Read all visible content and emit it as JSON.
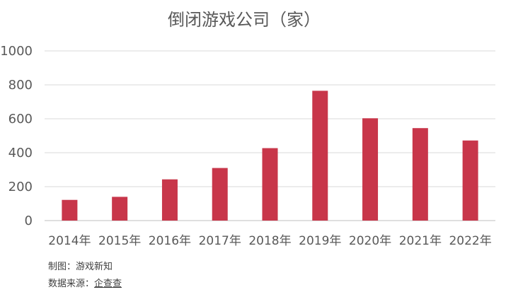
{
  "chart_data": {
    "type": "bar",
    "title": "倒闭游戏公司（家）",
    "categories": [
      "2014年",
      "2015年",
      "2016年",
      "2017年",
      "2018年",
      "2019年",
      "2020年",
      "2021年",
      "2022年"
    ],
    "values": [
      122,
      140,
      243,
      310,
      427,
      765,
      603,
      545,
      472
    ],
    "ylim": [
      0,
      1000
    ],
    "yticks": [
      0,
      200,
      400,
      600,
      800,
      1000
    ],
    "grid": true,
    "bar_color": "#c8364a"
  },
  "credits": {
    "maker_label": "制图：",
    "maker_value": "游戏新知",
    "source_label": "数据来源：",
    "source_value": "企查查"
  }
}
